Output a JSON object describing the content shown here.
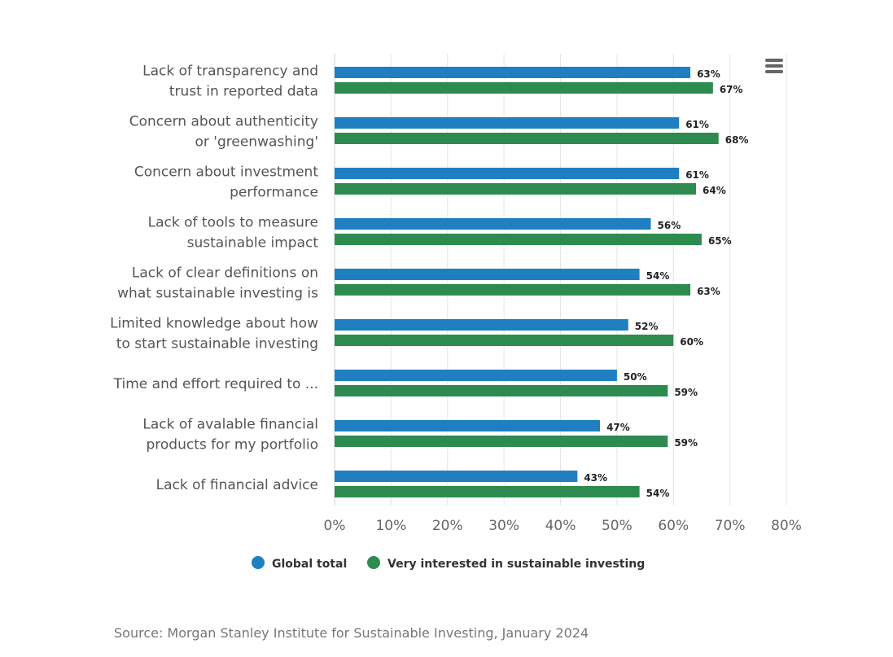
{
  "chart_data": {
    "type": "bar",
    "orientation": "horizontal",
    "categories": [
      [
        "Lack of transparency and",
        "trust in reported data"
      ],
      [
        "Concern about authenticity",
        "or 'greenwashing'"
      ],
      [
        "Concern about investment",
        "performance"
      ],
      [
        "Lack of tools to measure",
        "sustainable impact"
      ],
      [
        "Lack of clear definitions on",
        "what sustainable investing is"
      ],
      [
        "Limited knowledge about how",
        "to start sustainable investing"
      ],
      [
        "Time and effort required to ..."
      ],
      [
        "Lack of avalable financial",
        "products for my portfolio"
      ],
      [
        "Lack of financial advice"
      ]
    ],
    "series": [
      {
        "name": "Global total",
        "color": "#1f7fc1",
        "values": [
          63,
          61,
          61,
          56,
          54,
          52,
          50,
          47,
          43
        ]
      },
      {
        "name": "Very interested in sustainable investing",
        "color": "#2e8b4f",
        "values": [
          67,
          68,
          64,
          65,
          63,
          60,
          59,
          59,
          54
        ]
      }
    ],
    "xlim": [
      0,
      80
    ],
    "x_ticks": [
      0,
      10,
      20,
      30,
      40,
      50,
      60,
      70,
      80
    ],
    "tick_suffix": "%",
    "value_suffix": "%",
    "grid": true,
    "legend_position": "bottom-center",
    "source": "Source: Morgan Stanley Institute for Sustainable Investing, January 2024"
  },
  "menu": {
    "icon": "hamburger-menu-icon",
    "color": "#666666"
  },
  "colors": {
    "axis": "#cccccc",
    "grid": "#e6e6e6"
  }
}
